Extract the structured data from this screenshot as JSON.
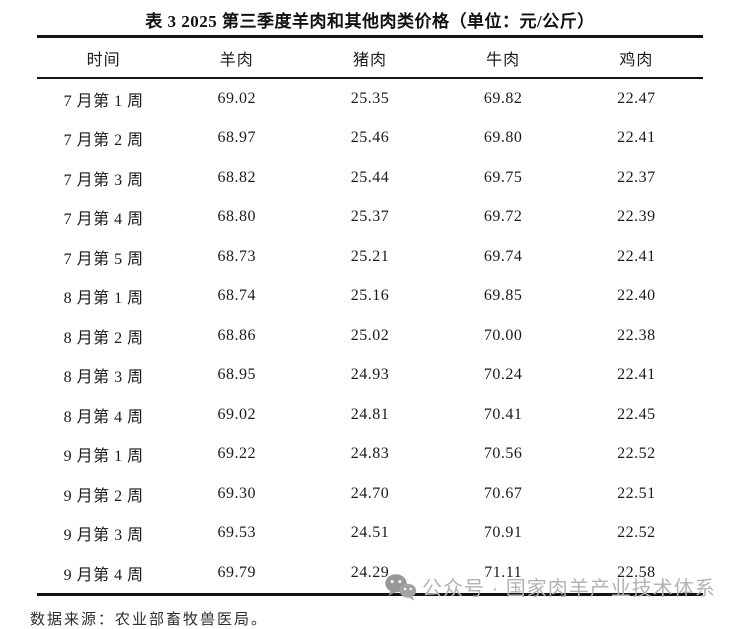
{
  "title": "表 3  2025 第三季度羊肉和其他肉类价格（单位：元/公斤）",
  "table": {
    "columns": [
      "时间",
      "羊肉",
      "猪肉",
      "牛肉",
      "鸡肉"
    ],
    "rows": [
      [
        "7 月第 1 周",
        "69.02",
        "25.35",
        "69.82",
        "22.47"
      ],
      [
        "7 月第 2 周",
        "68.97",
        "25.46",
        "69.80",
        "22.41"
      ],
      [
        "7 月第 3 周",
        "68.82",
        "25.44",
        "69.75",
        "22.37"
      ],
      [
        "7 月第 4 周",
        "68.80",
        "25.37",
        "69.72",
        "22.39"
      ],
      [
        "7 月第 5 周",
        "68.73",
        "25.21",
        "69.74",
        "22.41"
      ],
      [
        "8 月第 1 周",
        "68.74",
        "25.16",
        "69.85",
        "22.40"
      ],
      [
        "8 月第 2 周",
        "68.86",
        "25.02",
        "70.00",
        "22.38"
      ],
      [
        "8 月第 3 周",
        "68.95",
        "24.93",
        "70.24",
        "22.41"
      ],
      [
        "8 月第 4 周",
        "69.02",
        "24.81",
        "70.41",
        "22.45"
      ],
      [
        "9 月第 1 周",
        "69.22",
        "24.83",
        "70.56",
        "22.52"
      ],
      [
        "9 月第 2 周",
        "69.30",
        "24.70",
        "70.67",
        "22.51"
      ],
      [
        "9 月第 3 周",
        "69.53",
        "24.51",
        "70.91",
        "22.52"
      ],
      [
        "9 月第 4 周",
        "69.79",
        "24.29",
        "71.11",
        "22.58"
      ]
    ]
  },
  "footer": {
    "source": "数据来源：农业部畜牧兽医局。"
  },
  "watermark": {
    "icon": "wechat-icon",
    "text": "公众号 · 国家肉羊产业技术体系",
    "color": "#b3b3b3",
    "icon_color": "#979797"
  }
}
